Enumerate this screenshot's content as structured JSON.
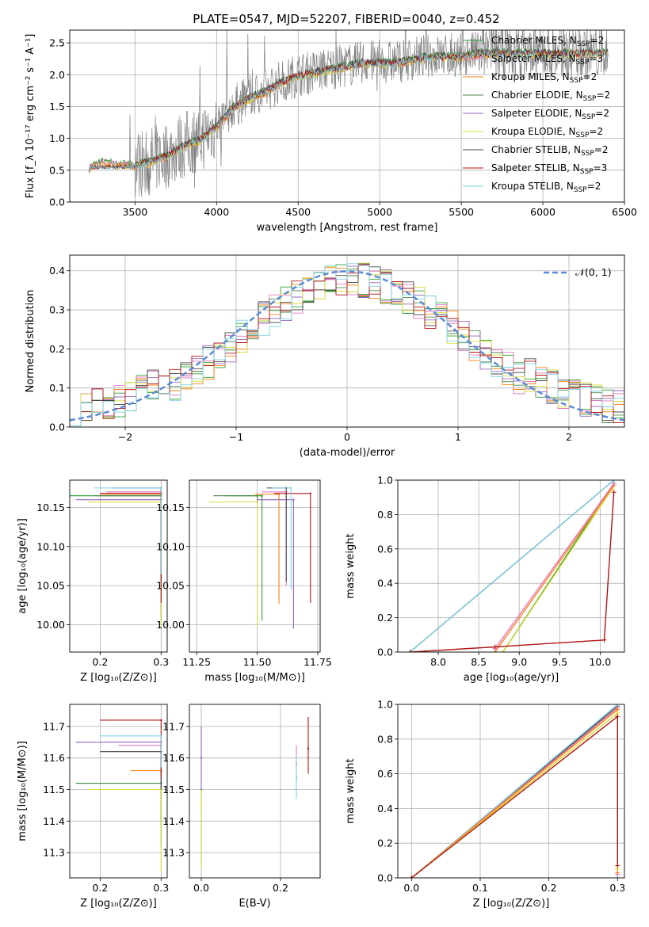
{
  "figure_title": "PLATE=0547, MJD=52207, FIBERID=0040, z=0.452",
  "models": [
    {
      "name": "Chabrier MILES",
      "nssp": "2",
      "color": "#2ca02c"
    },
    {
      "name": "Salpeter MILES",
      "nssp": "3",
      "color": "#e377c2"
    },
    {
      "name": "Kroupa MILES",
      "nssp": "2",
      "color": "#ff7f0e"
    },
    {
      "name": "Chabrier ELODIE",
      "nssp": "2",
      "color": "#4a8a4a"
    },
    {
      "name": "Salpeter ELODIE",
      "nssp": "2",
      "color": "#9467bd"
    },
    {
      "name": "Kroupa ELODIE",
      "nssp": "2",
      "color": "#dbdb38"
    },
    {
      "name": "Chabrier STELIB",
      "nssp": "2",
      "color": "#444444"
    },
    {
      "name": "Salpeter STELIB",
      "nssp": "3",
      "color": "#b01515"
    },
    {
      "name": "Kroupa STELIB",
      "nssp": "2",
      "color": "#7fd1e0"
    }
  ],
  "chart_data": [
    {
      "id": "spectrum",
      "type": "line",
      "xlabel": "wavelength [Angstrom, rest frame]",
      "ylabel": "Flux [f_λ 10⁻¹⁷ erg cm⁻² s⁻¹ A⁻¹]",
      "xlim": [
        3100,
        6500
      ],
      "ylim": [
        0,
        2.7
      ],
      "xticks": [
        "3500",
        "4000",
        "4500",
        "5000",
        "5500",
        "6000",
        "6500"
      ],
      "yticks": [
        "0.0",
        "0.5",
        "1.0",
        "1.5",
        "2.0",
        "2.5"
      ],
      "data_color": "#808080",
      "model_continuum": {
        "x": [
          3200,
          3220,
          3300,
          3400,
          3500,
          3600,
          3700,
          3800,
          3900,
          4000,
          4100,
          4200,
          4300,
          4400,
          4500,
          4600,
          4700,
          4800,
          4900,
          5000,
          5100,
          5200,
          5300,
          5400,
          5500,
          5600,
          5700,
          5800,
          5900,
          6000,
          6100,
          6200,
          6300,
          6400
        ],
        "y": [
          0.0,
          0.55,
          0.65,
          0.6,
          0.6,
          0.65,
          0.75,
          0.9,
          1.0,
          1.2,
          1.5,
          1.65,
          1.75,
          1.9,
          2.0,
          2.05,
          2.1,
          2.15,
          2.2,
          2.2,
          2.2,
          2.25,
          2.3,
          2.3,
          2.3,
          2.35,
          2.35,
          2.35,
          2.35,
          2.35,
          2.35,
          2.35,
          2.35,
          2.35
        ]
      }
    },
    {
      "id": "residuals",
      "type": "line",
      "xlabel": "(data-model)/error",
      "ylabel": "Normed distribution",
      "xlim": [
        -2.5,
        2.5
      ],
      "ylim": [
        0,
        0.44
      ],
      "xticks": [
        "−2",
        "−1",
        "0",
        "1",
        "2"
      ],
      "yticks": [
        "0.0",
        "0.1",
        "0.2",
        "0.3",
        "0.4"
      ],
      "legend": "𝒩(0, 1)",
      "normal_color": "#5b8ad8"
    },
    {
      "id": "age_vs_Z",
      "type": "scatter",
      "xlabel": "Z [log₁₀(Z/Z⊙)]",
      "ylabel": "age  [log₁₀(age/yr)]",
      "xlim": [
        0.15,
        0.31
      ],
      "ylim": [
        9.965,
        10.185
      ],
      "xticks": [
        "0.2",
        "0.3"
      ],
      "yticks": [
        "10.00",
        "10.05",
        "10.10",
        "10.15"
      ],
      "points": [
        {
          "model": 0,
          "x": 0.3,
          "y": 10.165,
          "xerr": [
            0.15,
            0.0
          ],
          "yerr": [
            0.16,
            0.0
          ]
        },
        {
          "model": 1,
          "x": 0.3,
          "y": 10.17,
          "xerr": [
            0.09,
            0.0
          ],
          "yerr": [
            0.12,
            0.0
          ]
        },
        {
          "model": 2,
          "x": 0.3,
          "y": 10.167,
          "xerr": [
            0.1,
            0.0
          ],
          "yerr": [
            0.14,
            0.0
          ]
        },
        {
          "model": 3,
          "x": 0.3,
          "y": 10.165,
          "xerr": [
            0.11,
            0.0
          ],
          "yerr": [
            0.13,
            0.0
          ]
        },
        {
          "model": 4,
          "x": 0.3,
          "y": 10.16,
          "xerr": [
            0.14,
            0.0
          ],
          "yerr": [
            0.15,
            0.0
          ]
        },
        {
          "model": 5,
          "x": 0.3,
          "y": 10.157,
          "xerr": [
            0.12,
            0.0
          ],
          "yerr": [
            0.16,
            0.0
          ]
        },
        {
          "model": 6,
          "x": 0.3,
          "y": 10.175,
          "xerr": [
            0.08,
            0.0
          ],
          "yerr": [
            0.12,
            0.0
          ]
        },
        {
          "model": 7,
          "x": 0.3,
          "y": 10.168,
          "xerr": [
            0.1,
            0.0
          ],
          "yerr": [
            0.14,
            0.0
          ]
        },
        {
          "model": 8,
          "x": 0.3,
          "y": 10.175,
          "xerr": [
            0.11,
            0.0
          ],
          "yerr": [
            0.11,
            0.0
          ]
        }
      ]
    },
    {
      "id": "age_vs_mass",
      "type": "scatter",
      "xlabel": "mass [log₁₀(M/M⊙)]",
      "ylabel": "",
      "xlim": [
        11.22,
        11.76
      ],
      "ylim": [
        9.965,
        10.185
      ],
      "xticks": [
        "11.25",
        "11.50",
        "11.75"
      ],
      "yticks": [
        "10.00",
        "10.05",
        "10.10",
        "10.15"
      ],
      "points": [
        {
          "model": 0,
          "x": 11.52,
          "y": 10.165,
          "xerr": [
            0.15,
            0.0
          ],
          "yerr": [
            0.16,
            0.0
          ]
        },
        {
          "model": 1,
          "x": 11.62,
          "y": 10.17,
          "xerr": [
            0.1,
            0.0
          ],
          "yerr": [
            0.12,
            0.0
          ]
        },
        {
          "model": 2,
          "x": 11.59,
          "y": 10.167,
          "xerr": [
            0.1,
            0.0
          ],
          "yerr": [
            0.14,
            0.0
          ]
        },
        {
          "model": 3,
          "x": 11.5,
          "y": 10.165,
          "xerr": [
            0.18,
            0.0
          ],
          "yerr": [
            0.16,
            0.0
          ]
        },
        {
          "model": 4,
          "x": 11.65,
          "y": 10.16,
          "xerr": [
            0.15,
            0.0
          ],
          "yerr": [
            0.165,
            0.0
          ]
        },
        {
          "model": 5,
          "x": 11.5,
          "y": 10.157,
          "xerr": [
            0.2,
            0.0
          ],
          "yerr": [
            0.16,
            0.0
          ]
        },
        {
          "model": 6,
          "x": 11.62,
          "y": 10.175,
          "xerr": [
            0.08,
            0.0
          ],
          "yerr": [
            0.12,
            0.0
          ]
        },
        {
          "model": 7,
          "x": 11.72,
          "y": 10.168,
          "xerr": [
            0.15,
            0.0
          ],
          "yerr": [
            0.14,
            0.0
          ]
        },
        {
          "model": 8,
          "x": 11.64,
          "y": 10.175,
          "xerr": [
            0.08,
            0.0
          ],
          "yerr": [
            0.13,
            0.0
          ]
        }
      ]
    },
    {
      "id": "massweight_vs_age",
      "type": "line",
      "xlabel": "age  [log₁₀(age/yr)]",
      "ylabel": "mass weight",
      "xlim": [
        7.5,
        10.3
      ],
      "ylim": [
        0,
        1.0
      ],
      "xticks": [
        "8.0",
        "8.5",
        "9.0",
        "9.5",
        "10.0"
      ],
      "yticks": [
        "0.0",
        "0.2",
        "0.4",
        "0.6",
        "0.8",
        "1.0"
      ],
      "series": [
        {
          "model": 6,
          "x": [
            7.65,
            10.17
          ],
          "y": [
            0.0,
            1.0
          ]
        },
        {
          "model": 8,
          "x": [
            7.65,
            10.17
          ],
          "y": [
            0.0,
            1.0
          ]
        },
        {
          "model": 0,
          "x": [
            8.8,
            10.17
          ],
          "y": [
            0.0,
            0.98
          ]
        },
        {
          "model": 5,
          "x": [
            8.8,
            10.15
          ],
          "y": [
            0.0,
            0.95
          ]
        },
        {
          "model": 2,
          "x": [
            8.7,
            10.17
          ],
          "y": [
            0.0,
            0.97
          ]
        },
        {
          "model": 1,
          "x": [
            8.7,
            10.17
          ],
          "y": [
            0.02,
            0.98
          ]
        },
        {
          "model": 7,
          "x": [
            7.65,
            8.7,
            10.05,
            10.17
          ],
          "y": [
            0.0,
            0.03,
            0.07,
            0.93
          ]
        }
      ]
    },
    {
      "id": "mass_vs_Z",
      "type": "scatter",
      "xlabel": "Z [log₁₀(Z/Z⊙)]",
      "ylabel": "mass [log₁₀(M/M⊙)]",
      "xlim": [
        0.15,
        0.31
      ],
      "ylim": [
        11.22,
        11.77
      ],
      "xticks": [
        "0.2",
        "0.3"
      ],
      "yticks": [
        "11.3",
        "11.4",
        "11.5",
        "11.6",
        "11.7"
      ],
      "points": [
        {
          "model": 0,
          "x": 0.3,
          "y": 11.52,
          "xerr": [
            0.14,
            0.0
          ],
          "yerr": [
            0.2,
            0.0
          ]
        },
        {
          "model": 1,
          "x": 0.3,
          "y": 11.64,
          "xerr": [
            0.07,
            0.0
          ],
          "yerr": [
            0.15,
            0.0
          ]
        },
        {
          "model": 2,
          "x": 0.3,
          "y": 11.56,
          "xerr": [
            0.05,
            0.0
          ],
          "yerr": [
            0.12,
            0.0
          ]
        },
        {
          "model": 3,
          "x": 0.3,
          "y": 11.52,
          "xerr": [
            0.14,
            0.0
          ],
          "yerr": [
            0.12,
            0.0
          ]
        },
        {
          "model": 4,
          "x": 0.3,
          "y": 11.65,
          "xerr": [
            0.14,
            0.0
          ],
          "yerr": [
            0.13,
            0.0
          ]
        },
        {
          "model": 5,
          "x": 0.3,
          "y": 11.5,
          "xerr": [
            0.12,
            0.0
          ],
          "yerr": [
            0.26,
            0.0
          ]
        },
        {
          "model": 6,
          "x": 0.3,
          "y": 11.62,
          "xerr": [
            0.1,
            0.0
          ],
          "yerr": [
            0.12,
            0.0
          ]
        },
        {
          "model": 7,
          "x": 0.3,
          "y": 11.72,
          "xerr": [
            0.1,
            0.0
          ],
          "yerr": [
            0.18,
            0.0
          ]
        },
        {
          "model": 8,
          "x": 0.3,
          "y": 11.67,
          "xerr": [
            0.1,
            0.0
          ],
          "yerr": [
            0.1,
            0.0
          ]
        }
      ]
    },
    {
      "id": "mass_vs_ebv",
      "type": "scatter",
      "xlabel": "E(B-V)",
      "ylabel": "",
      "xlim": [
        -0.03,
        0.3
      ],
      "ylim": [
        11.22,
        11.77
      ],
      "xticks": [
        "0.0",
        "0.2"
      ],
      "yticks": [
        "11.3",
        "11.4",
        "11.5",
        "11.6",
        "11.7"
      ],
      "points": [
        {
          "model": 0,
          "x": 0.0,
          "y": 11.5,
          "xerr": [
            0,
            0
          ],
          "yerr": [
            0.25,
            0.0
          ]
        },
        {
          "model": 4,
          "x": 0.0,
          "y": 11.6,
          "xerr": [
            0,
            0
          ],
          "yerr": [
            0.1,
            0.1
          ]
        },
        {
          "model": 5,
          "x": 0.0,
          "y": 11.45,
          "xerr": [
            0,
            0
          ],
          "yerr": [
            0.2,
            0.05
          ]
        },
        {
          "model": 1,
          "x": 0.24,
          "y": 11.58,
          "xerr": [
            0,
            0
          ],
          "yerr": [
            0.06,
            0.06
          ]
        },
        {
          "model": 8,
          "x": 0.24,
          "y": 11.54,
          "xerr": [
            0,
            0
          ],
          "yerr": [
            0.07,
            0.07
          ]
        },
        {
          "model": 7,
          "x": 0.27,
          "y": 11.63,
          "xerr": [
            0,
            0
          ],
          "yerr": [
            0.08,
            0.1
          ]
        }
      ]
    },
    {
      "id": "massweight_vs_Z",
      "type": "line",
      "xlabel": "Z [log₁₀(Z/Z⊙)]",
      "ylabel": "mass weight",
      "xlim": [
        -0.02,
        0.31
      ],
      "ylim": [
        0,
        1.0
      ],
      "xticks": [
        "0.0",
        "0.1",
        "0.2",
        "0.3"
      ],
      "yticks": [
        "0.0",
        "0.2",
        "0.4",
        "0.6",
        "0.8",
        "1.0"
      ],
      "series": [
        {
          "model": 6,
          "x": [
            0.0,
            0.3,
            0.3
          ],
          "y": [
            0.0,
            0.99,
            0.0
          ]
        },
        {
          "model": 8,
          "x": [
            0.0,
            0.3,
            0.3
          ],
          "y": [
            0.0,
            1.0,
            0.0
          ]
        },
        {
          "model": 1,
          "x": [
            0.0,
            0.3,
            0.3
          ],
          "y": [
            0.0,
            0.98,
            0.02
          ]
        },
        {
          "model": 2,
          "x": [
            0.0,
            0.3,
            0.3
          ],
          "y": [
            0.0,
            0.97,
            0.03
          ]
        },
        {
          "model": 5,
          "x": [
            0.0,
            0.3,
            0.3
          ],
          "y": [
            0.0,
            0.95,
            0.05
          ]
        },
        {
          "model": 7,
          "x": [
            0.0,
            0.3,
            0.3
          ],
          "y": [
            0.0,
            0.93,
            0.07
          ]
        }
      ]
    }
  ]
}
